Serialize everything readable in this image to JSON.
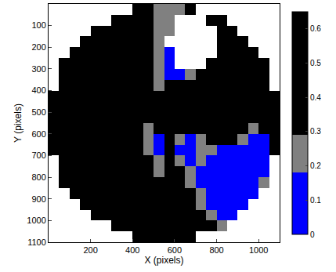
{
  "chart_data": {
    "type": "heatmap",
    "xlabel": "X (pixels)",
    "ylabel": "Y (pixels)",
    "xlim": [
      0,
      1100
    ],
    "xticks": [
      200,
      400,
      600,
      800,
      1000
    ],
    "ylim": [
      1100,
      0
    ],
    "yticks": [
      100,
      200,
      300,
      400,
      500,
      600,
      700,
      800,
      900,
      1000,
      1100
    ],
    "x": [
      25,
      75,
      125,
      175,
      225,
      275,
      325,
      375,
      425,
      475,
      525,
      575,
      625,
      675,
      725,
      775,
      825,
      875,
      925,
      975,
      1025,
      1075
    ],
    "y": [
      25,
      75,
      125,
      175,
      225,
      275,
      325,
      375,
      425,
      475,
      525,
      575,
      625,
      675,
      725,
      775,
      825,
      875,
      925,
      975,
      1025,
      1075
    ],
    "z": [
      [
        null,
        null,
        null,
        null,
        null,
        null,
        null,
        null,
        0.5,
        0.5,
        0.25,
        0.25,
        0.25,
        0.5,
        null,
        null,
        null,
        null,
        null,
        null,
        null,
        null
      ],
      [
        null,
        null,
        null,
        null,
        null,
        null,
        0.5,
        0.5,
        0.5,
        0.5,
        0.25,
        0.25,
        null,
        null,
        null,
        0.5,
        0.5,
        null,
        null,
        null,
        null,
        null
      ],
      [
        null,
        null,
        null,
        null,
        0.5,
        0.5,
        0.5,
        0.5,
        0.5,
        0.5,
        0.25,
        0.25,
        null,
        null,
        null,
        null,
        0.5,
        0.5,
        null,
        null,
        null,
        null
      ],
      [
        null,
        null,
        null,
        0.5,
        0.5,
        0.5,
        0.5,
        0.5,
        0.5,
        0.5,
        0.25,
        null,
        null,
        null,
        null,
        null,
        0.5,
        0.5,
        0.5,
        null,
        null,
        null
      ],
      [
        null,
        null,
        0.5,
        0.5,
        0.5,
        0.5,
        0.5,
        0.5,
        0.5,
        0.5,
        0.25,
        0.1,
        null,
        null,
        null,
        null,
        0.5,
        0.5,
        0.5,
        0.5,
        null,
        null
      ],
      [
        null,
        0.5,
        0.5,
        0.5,
        0.5,
        0.5,
        0.5,
        0.5,
        0.5,
        0.5,
        0.25,
        0.1,
        null,
        null,
        null,
        0.5,
        0.5,
        0.5,
        0.5,
        0.5,
        0.5,
        null
      ],
      [
        null,
        0.5,
        0.5,
        0.5,
        0.5,
        0.5,
        0.5,
        0.5,
        0.5,
        0.5,
        0.25,
        0.1,
        0.1,
        0.25,
        0.5,
        0.5,
        0.5,
        0.5,
        0.5,
        0.5,
        0.5,
        null
      ],
      [
        null,
        0.5,
        0.5,
        0.5,
        0.5,
        0.5,
        0.5,
        0.5,
        0.5,
        0.5,
        0.25,
        0.5,
        0.5,
        0.5,
        0.5,
        0.5,
        0.5,
        0.5,
        0.5,
        0.5,
        0.5,
        null
      ],
      [
        0.5,
        0.5,
        0.5,
        0.5,
        0.5,
        0.5,
        0.5,
        0.5,
        0.5,
        0.5,
        0.5,
        0.5,
        0.5,
        0.5,
        0.5,
        0.5,
        0.5,
        0.5,
        0.5,
        0.5,
        0.5,
        0.5
      ],
      [
        0.5,
        0.5,
        0.5,
        0.5,
        0.5,
        0.5,
        0.5,
        0.5,
        0.5,
        0.5,
        0.5,
        0.5,
        0.5,
        0.5,
        0.5,
        0.5,
        0.5,
        0.5,
        0.5,
        0.5,
        0.5,
        0.5
      ],
      [
        0.5,
        0.5,
        0.5,
        0.5,
        0.5,
        0.5,
        0.5,
        0.5,
        0.5,
        0.5,
        0.5,
        0.5,
        0.5,
        0.5,
        0.5,
        0.5,
        0.5,
        0.5,
        0.5,
        0.5,
        0.5,
        0.5
      ],
      [
        0.5,
        0.5,
        0.5,
        0.5,
        0.5,
        0.5,
        0.5,
        0.5,
        0.5,
        0.25,
        0.5,
        0.5,
        0.5,
        0.5,
        0.5,
        0.5,
        0.5,
        0.5,
        0.5,
        0.25,
        0.5,
        0.5
      ],
      [
        0.5,
        0.5,
        0.5,
        0.5,
        0.5,
        0.5,
        0.5,
        0.5,
        0.5,
        0.25,
        0.1,
        0.5,
        0.25,
        0.1,
        0.25,
        0.5,
        0.5,
        0.5,
        0.25,
        0.1,
        0.1,
        0.5
      ],
      [
        0.5,
        0.5,
        0.5,
        0.5,
        0.5,
        0.5,
        0.5,
        0.5,
        0.5,
        0.25,
        0.1,
        0.5,
        0.1,
        0.1,
        0.25,
        0.25,
        0.1,
        0.1,
        0.1,
        0.1,
        0.1,
        0.5
      ],
      [
        null,
        0.5,
        0.5,
        0.5,
        0.5,
        0.5,
        0.5,
        0.5,
        0.5,
        0.5,
        0.25,
        0.5,
        0.25,
        0.1,
        0.25,
        0.1,
        0.1,
        0.1,
        0.1,
        0.1,
        0.1,
        null
      ],
      [
        null,
        0.5,
        0.5,
        0.5,
        0.5,
        0.5,
        0.5,
        0.5,
        0.5,
        0.5,
        0.25,
        0.5,
        0.5,
        0.25,
        0.1,
        0.1,
        0.1,
        0.1,
        0.1,
        0.1,
        0.1,
        null
      ],
      [
        null,
        0.5,
        0.5,
        0.5,
        0.5,
        0.5,
        0.5,
        0.5,
        0.5,
        0.5,
        0.5,
        0.5,
        0.5,
        0.25,
        0.1,
        0.1,
        0.1,
        0.1,
        0.1,
        0.1,
        0.25,
        null
      ],
      [
        null,
        null,
        0.5,
        0.5,
        0.5,
        0.5,
        0.5,
        0.5,
        0.5,
        0.5,
        0.5,
        0.5,
        0.5,
        0.5,
        0.25,
        0.1,
        0.1,
        0.1,
        0.1,
        0.1,
        null,
        null
      ],
      [
        null,
        null,
        null,
        0.5,
        0.5,
        0.5,
        0.5,
        0.5,
        0.5,
        0.5,
        0.5,
        0.5,
        0.5,
        0.5,
        0.25,
        0.1,
        0.1,
        0.1,
        0.1,
        null,
        null,
        null
      ],
      [
        null,
        null,
        null,
        null,
        0.5,
        0.5,
        0.5,
        0.5,
        0.5,
        0.5,
        0.5,
        0.5,
        0.5,
        0.5,
        0.5,
        0.25,
        0.1,
        0.1,
        null,
        null,
        null,
        null
      ],
      [
        null,
        null,
        null,
        null,
        null,
        null,
        0.5,
        0.5,
        0.5,
        0.5,
        0.5,
        0.5,
        0.5,
        0.5,
        0.5,
        0.5,
        0.25,
        null,
        null,
        null,
        null,
        null
      ],
      [
        null,
        null,
        null,
        null,
        null,
        null,
        null,
        null,
        0.5,
        0.5,
        0.5,
        0.5,
        0.5,
        0.5,
        null,
        null,
        null,
        null,
        null,
        null,
        null,
        null
      ]
    ],
    "colorbar": {
      "range": [
        0,
        0.65
      ],
      "ticks": [
        0,
        0.1,
        0.2,
        0.3,
        0.4,
        0.5,
        0.6
      ],
      "levels": [
        0,
        0.18,
        0.29,
        0.65
      ],
      "colors": [
        "#0000ff",
        "#808080",
        "#000000"
      ]
    }
  }
}
